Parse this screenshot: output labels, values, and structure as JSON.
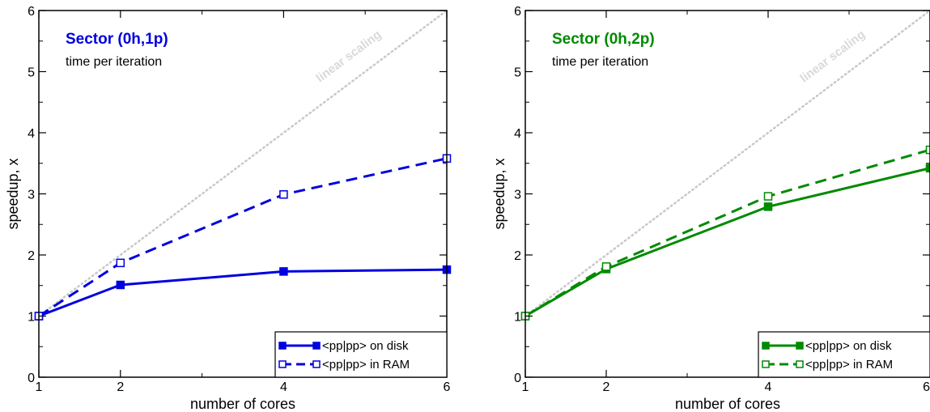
{
  "chart_data": [
    {
      "type": "line",
      "title": "Sector (0h,1p)",
      "subtitle": "time per iteration",
      "xlabel": "number of cores",
      "ylabel": "speedup, x",
      "xlim": [
        1,
        6
      ],
      "ylim": [
        0,
        6
      ],
      "xticks": [
        1,
        2,
        4,
        6
      ],
      "yticks": [
        0,
        1,
        2,
        3,
        4,
        5,
        6
      ],
      "color": "#0000e0",
      "reference_label": "linear scaling",
      "legend_position": "bottom-right",
      "series": [
        {
          "name": "<pp|pp> on disk",
          "x": [
            1,
            2,
            4,
            6
          ],
          "y": [
            1.0,
            1.51,
            1.73,
            1.76
          ],
          "style": "solid",
          "marker": "filled-square"
        },
        {
          "name": "<pp|pp> in RAM",
          "x": [
            1,
            2,
            4,
            6
          ],
          "y": [
            1.0,
            1.87,
            2.99,
            3.58
          ],
          "style": "dashed",
          "marker": "open-square"
        }
      ]
    },
    {
      "type": "line",
      "title": "Sector (0h,2p)",
      "subtitle": "time per iteration",
      "xlabel": "number of cores",
      "ylabel": "speedup, x",
      "xlim": [
        1,
        6
      ],
      "ylim": [
        0,
        6
      ],
      "xticks": [
        1,
        2,
        4,
        6
      ],
      "yticks": [
        0,
        1,
        2,
        3,
        4,
        5,
        6
      ],
      "color": "#008a00",
      "reference_label": "linear scaling",
      "legend_position": "bottom-right",
      "series": [
        {
          "name": "<pp|pp> on disk",
          "x": [
            1,
            2,
            4,
            6
          ],
          "y": [
            1.0,
            1.77,
            2.79,
            3.42
          ],
          "style": "solid",
          "marker": "filled-square"
        },
        {
          "name": "<pp|pp> in RAM",
          "x": [
            1,
            2,
            4,
            6
          ],
          "y": [
            1.0,
            1.81,
            2.96,
            3.72
          ],
          "style": "dashed",
          "marker": "open-square"
        }
      ]
    }
  ]
}
